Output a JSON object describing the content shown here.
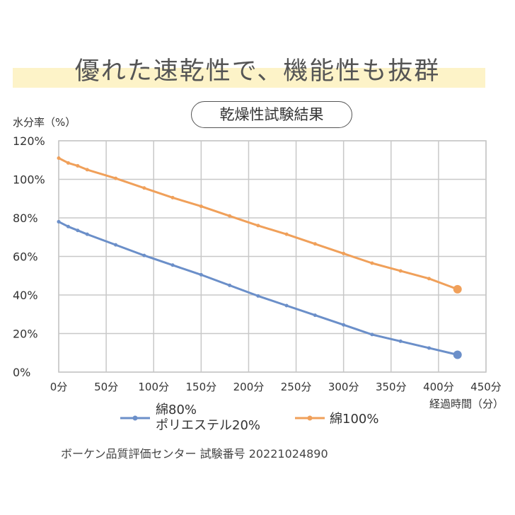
{
  "headline": "優れた速乾性で、機能性も抜群",
  "chart_data": {
    "type": "line",
    "title": "乾燥性試験結果",
    "ylabel": "水分率（%）",
    "xlabel": "経過時間（分）",
    "x_ticks": [
      0,
      50,
      100,
      150,
      200,
      250,
      300,
      350,
      400,
      450
    ],
    "x_tick_labels": [
      "0分",
      "50分",
      "100分",
      "150分",
      "200分",
      "250分",
      "300分",
      "350分",
      "400分",
      "450分"
    ],
    "y_ticks": [
      0,
      20,
      40,
      60,
      80,
      100,
      120
    ],
    "y_tick_labels": [
      "0%",
      "20%",
      "40%",
      "60%",
      "80%",
      "100%",
      "120%"
    ],
    "xlim": [
      0,
      450
    ],
    "ylim": [
      0,
      120
    ],
    "grid": true,
    "series": [
      {
        "name": "綿80%\nポリエステル20%",
        "legend_line1": "綿80%",
        "legend_line2": "ポリエステル20%",
        "color": "#6b8fc9",
        "x": [
          0,
          10,
          20,
          30,
          60,
          90,
          120,
          150,
          180,
          210,
          240,
          270,
          300,
          330,
          360,
          390,
          420
        ],
        "y": [
          78,
          75.5,
          73.5,
          71.5,
          66,
          60.5,
          55.5,
          50.5,
          45,
          39.5,
          34.5,
          29.5,
          24.5,
          19.5,
          16,
          12.5,
          9
        ]
      },
      {
        "name": "綿100%",
        "legend_line1": "綿100%",
        "color": "#f0a05a",
        "x": [
          0,
          10,
          20,
          30,
          60,
          90,
          120,
          150,
          180,
          210,
          240,
          270,
          300,
          330,
          360,
          390,
          420
        ],
        "y": [
          111,
          108.5,
          107,
          105,
          100.5,
          95.5,
          90.5,
          86,
          81,
          76,
          71.5,
          66.5,
          61.5,
          56.5,
          52.5,
          48.5,
          43
        ]
      }
    ]
  },
  "source": "ボーケン品質評価センター 試験番号 20221024890"
}
